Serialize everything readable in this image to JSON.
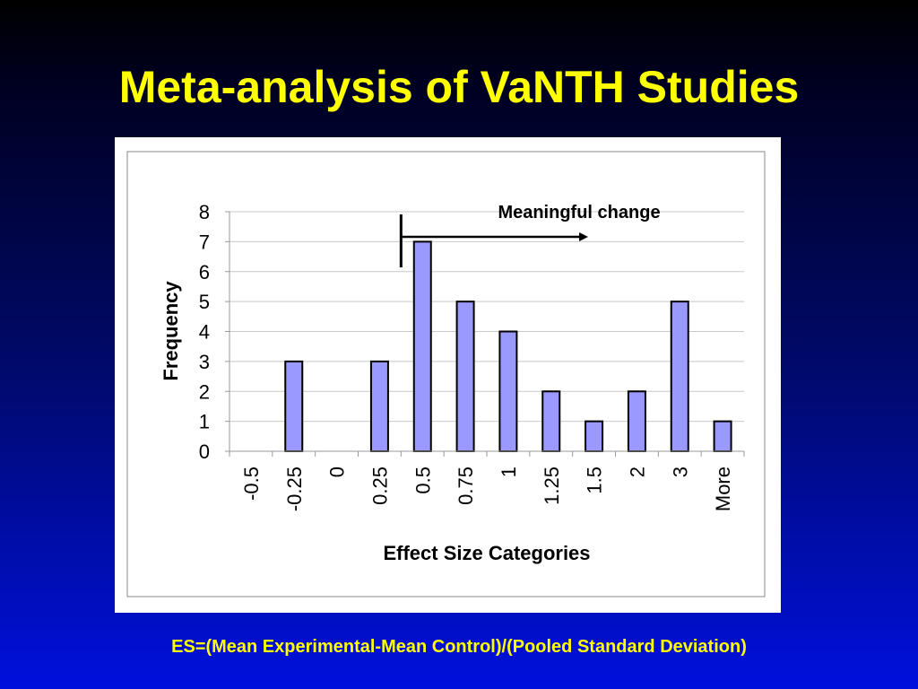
{
  "slide": {
    "title": "Meta-analysis of VaNTH Studies",
    "formula": "ES=(Mean Experimental-Mean Control)/(Pooled Standard Deviation)"
  },
  "colors": {
    "title_text": "#ffff00",
    "bar_fill": "#9999ff",
    "bar_stroke": "#000000",
    "chart_background": "#ffffff"
  },
  "chart_data": {
    "type": "bar",
    "categories": [
      "-0.5",
      "-0.25",
      "0",
      "0.25",
      "0.5",
      "0.75",
      "1",
      "1.25",
      "1.5",
      "2",
      "3",
      "More"
    ],
    "values": [
      0,
      3,
      0,
      3,
      7,
      5,
      4,
      2,
      1,
      2,
      5,
      1
    ],
    "xlabel": "Effect Size Categories",
    "ylabel": "Frequency",
    "ylim": [
      0,
      8
    ],
    "yticks": [
      0,
      1,
      2,
      3,
      4,
      5,
      6,
      7,
      8
    ],
    "grid": true,
    "legend": "none",
    "annotation": {
      "text": "Meaningful change",
      "marker_x_between": [
        "0.25",
        "0.5"
      ],
      "arrow_direction": "right"
    }
  }
}
